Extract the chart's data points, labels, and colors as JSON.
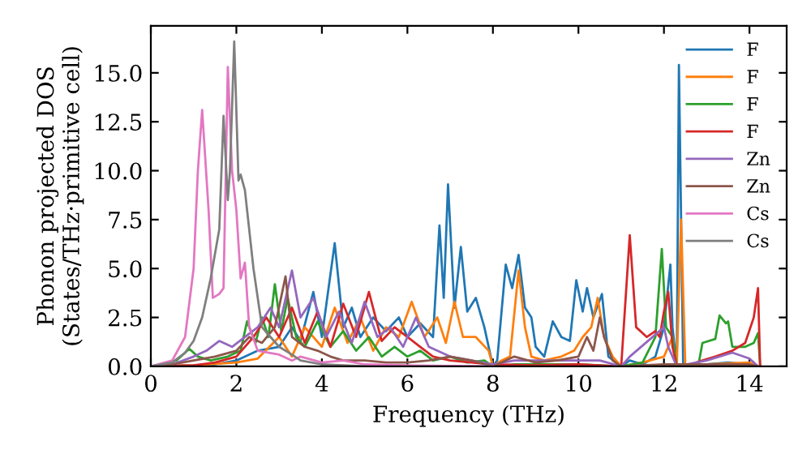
{
  "chart_data": {
    "type": "line",
    "xlabel": "Frequency (THz)",
    "ylabel": "Phonon projected DOS\n(States/THz·primitive cell)",
    "xlim": [
      0,
      14.87
    ],
    "ylim": [
      0,
      17.4
    ],
    "xticks": [
      0,
      2,
      4,
      6,
      8,
      10,
      12,
      14
    ],
    "yticks": [
      {
        "value": 0,
        "label": "0.0"
      },
      {
        "value": 2.5,
        "label": "2.5"
      },
      {
        "value": 5,
        "label": "5.0"
      },
      {
        "value": 7.5,
        "label": "7.5"
      },
      {
        "value": 10,
        "label": "10.0"
      },
      {
        "value": 12.5,
        "label": "12.5"
      },
      {
        "value": 15,
        "label": "15.0"
      }
    ],
    "grid": false,
    "legend": "top right",
    "marker": "none",
    "line_style": "solid",
    "series": [
      {
        "name": "F",
        "color": "#1f77b4",
        "x": [
          0,
          1,
          1.5,
          2,
          2.5,
          3.0,
          3.3,
          3.5,
          3.8,
          4.0,
          4.3,
          4.5,
          4.7,
          4.9,
          5.2,
          5.5,
          5.8,
          6.0,
          6.3,
          6.6,
          6.75,
          6.85,
          6.95,
          7.1,
          7.25,
          7.4,
          7.6,
          7.8,
          8.0,
          8.1,
          8.3,
          8.45,
          8.6,
          8.75,
          8.9,
          9.0,
          9.2,
          9.4,
          9.6,
          9.8,
          9.95,
          10.1,
          10.2,
          10.35,
          10.55,
          10.7,
          11.0,
          11.2,
          11.5,
          11.8,
          12.0,
          12.15,
          12.2,
          12.3,
          12.35,
          12.45,
          12.6,
          13,
          13.5,
          14,
          14.2
        ],
        "values": [
          0,
          0.05,
          0.1,
          0.3,
          0.8,
          1.0,
          2.0,
          1.3,
          3.8,
          1.5,
          6.3,
          2.0,
          3.0,
          1.5,
          2.5,
          1.8,
          2.5,
          1.5,
          2.2,
          1.5,
          7.2,
          3.5,
          9.3,
          3.0,
          6.1,
          2.8,
          3.5,
          2.0,
          0,
          0.3,
          5.2,
          4.0,
          5.7,
          3.0,
          2.5,
          1.0,
          0.5,
          2.3,
          1.5,
          1.3,
          4.4,
          2.8,
          4.0,
          2.5,
          3.7,
          0.5,
          0,
          0.3,
          0.1,
          0.5,
          2.0,
          5.2,
          2.0,
          0,
          15.4,
          0,
          0,
          0.1,
          0.2,
          0.1,
          0
        ]
      },
      {
        "name": "F",
        "color": "#ff7f0e",
        "x": [
          0,
          1,
          2,
          2.5,
          3.0,
          3.3,
          3.6,
          4.0,
          4.3,
          4.6,
          4.9,
          5.2,
          5.5,
          5.8,
          6.1,
          6.4,
          6.7,
          6.9,
          7.1,
          7.3,
          7.6,
          7.9,
          8.0,
          8.2,
          8.4,
          8.6,
          8.75,
          8.9,
          9.2,
          9.6,
          9.9,
          10.1,
          10.3,
          10.45,
          10.6,
          10.8,
          11.0,
          11.5,
          12.0,
          12.2,
          12.3,
          12.4,
          12.5,
          13,
          14,
          14.2
        ],
        "values": [
          0,
          0.05,
          0.2,
          0.4,
          1.5,
          0.5,
          2.0,
          1.0,
          3.0,
          1.2,
          2.5,
          0.8,
          2.0,
          1.5,
          3.3,
          1.5,
          2.5,
          1.2,
          3.3,
          1.5,
          1.5,
          0.8,
          0,
          0.3,
          0.5,
          4.9,
          2.0,
          0.5,
          0.3,
          0.5,
          0.8,
          1.5,
          2.0,
          3.5,
          1.5,
          0.5,
          0,
          0.2,
          0.5,
          1.5,
          0,
          7.5,
          0,
          0.1,
          0.2,
          0
        ]
      },
      {
        "name": "F",
        "color": "#2ca02c",
        "x": [
          0,
          0.6,
          0.9,
          1.1,
          1.4,
          1.8,
          2.1,
          2.25,
          2.45,
          2.6,
          2.75,
          2.9,
          3.05,
          3.2,
          3.4,
          3.6,
          3.9,
          4.2,
          4.5,
          4.8,
          5.1,
          5.4,
          5.7,
          6.0,
          6.3,
          6.6,
          7.0,
          7.4,
          7.8,
          8.0,
          8.5,
          9.0,
          10.0,
          11.0,
          11.5,
          11.8,
          11.95,
          12.05,
          12.2,
          12.3,
          12.8,
          12.9,
          13.2,
          13.3,
          13.45,
          13.5,
          13.6,
          13.9,
          14.1,
          14.2,
          14.25
        ],
        "values": [
          0,
          0.3,
          0.9,
          0.5,
          0.3,
          0.5,
          0.8,
          2.3,
          1.2,
          2.5,
          1.5,
          4.2,
          1.8,
          3.5,
          1.5,
          1.0,
          2.3,
          1.0,
          1.8,
          0.8,
          1.5,
          0.5,
          1.0,
          0.5,
          0.8,
          0.3,
          0.5,
          0.2,
          0.3,
          0,
          0.1,
          0.1,
          0.1,
          0,
          0.2,
          1.5,
          6.0,
          2.0,
          1.5,
          0,
          0,
          1.2,
          1.4,
          2.6,
          2.2,
          2.3,
          1.0,
          1.0,
          1.2,
          1.7,
          0
        ]
      },
      {
        "name": "F",
        "color": "#d62728",
        "x": [
          0,
          1,
          1.5,
          2.0,
          2.4,
          2.7,
          3.0,
          3.3,
          3.6,
          3.9,
          4.2,
          4.5,
          4.8,
          5.1,
          5.4,
          5.7,
          6.0,
          6.3,
          6.6,
          7.0,
          7.5,
          8.0,
          9,
          10,
          11.0,
          11.2,
          11.35,
          11.6,
          11.8,
          11.9,
          12.0,
          12.1,
          12.2,
          12.3,
          12.5,
          12.9,
          13.2,
          13.6,
          13.9,
          14.1,
          14.2,
          14.25
        ],
        "values": [
          0,
          0.05,
          0.2,
          0.5,
          1.5,
          2.5,
          1.5,
          3.0,
          1.2,
          2.8,
          1.0,
          3.2,
          1.5,
          3.8,
          1.3,
          2.0,
          1.5,
          1.0,
          0.5,
          0.3,
          0.2,
          0.1,
          0.05,
          0.1,
          0,
          6.7,
          2.0,
          1.5,
          1.8,
          1.5,
          2.8,
          3.8,
          1.0,
          0,
          0,
          0.3,
          0.5,
          0.8,
          1.2,
          2.5,
          4.0,
          0
        ]
      },
      {
        "name": "Zn",
        "color": "#9467bd",
        "x": [
          0,
          0.5,
          1.0,
          1.3,
          1.6,
          1.9,
          2.2,
          2.5,
          2.8,
          3.0,
          3.3,
          3.5,
          3.8,
          4.1,
          4.4,
          4.7,
          5.0,
          5.3,
          5.6,
          5.9,
          6.2,
          6.5,
          7.0,
          7.5,
          8.0,
          8.5,
          9.5,
          10.5,
          11.0,
          11.2,
          12.0,
          12.1,
          12.3,
          13,
          13.6,
          14,
          14.2
        ],
        "values": [
          0,
          0.1,
          0.5,
          0.8,
          1.3,
          1.0,
          1.5,
          2.0,
          3.0,
          2.0,
          4.9,
          2.5,
          3.5,
          1.5,
          2.8,
          1.2,
          3.3,
          1.5,
          2.0,
          1.0,
          2.5,
          1.0,
          0.5,
          0.3,
          0.1,
          0.3,
          0.3,
          0.3,
          0,
          0.5,
          2.0,
          1.0,
          0,
          0.3,
          0.7,
          0.4,
          0
        ]
      },
      {
        "name": "Zn",
        "color": "#8c564b",
        "x": [
          0,
          0.5,
          1.0,
          1.5,
          2.0,
          2.3,
          2.6,
          2.9,
          3.15,
          3.3,
          3.6,
          3.9,
          4.2,
          4.5,
          5.0,
          5.5,
          6.0,
          6.5,
          7.0,
          7.5,
          8.0,
          8.5,
          9.0,
          9.5,
          10.0,
          10.2,
          10.35,
          10.5,
          10.6,
          10.8,
          11,
          12,
          13,
          14,
          14.2
        ],
        "values": [
          0,
          0.1,
          0.3,
          0.5,
          0.8,
          1.5,
          1.2,
          2.0,
          4.6,
          1.5,
          1.0,
          0.8,
          0.5,
          0.3,
          0.3,
          0.2,
          0.2,
          0.3,
          0.5,
          0.3,
          0,
          0.5,
          0.2,
          0.3,
          0.5,
          1.5,
          0.8,
          2.5,
          1.5,
          0.3,
          0,
          0.1,
          0.1,
          0.1,
          0
        ]
      },
      {
        "name": "Cs",
        "color": "#e377c2",
        "x": [
          0,
          0.5,
          0.8,
          1.0,
          1.1,
          1.2,
          1.35,
          1.45,
          1.6,
          1.7,
          1.8,
          1.9,
          2.0,
          2.1,
          2.2,
          2.3,
          2.5,
          3.0,
          3.3,
          3.5,
          4.0,
          4.5,
          5,
          6,
          8
        ],
        "values": [
          0,
          0.3,
          1.5,
          5,
          10,
          13.1,
          8,
          3.5,
          3.7,
          4,
          15.3,
          10,
          8,
          4.5,
          5.3,
          2,
          0.8,
          0.6,
          0.3,
          0.5,
          0.2,
          0.3,
          0.1,
          0.05,
          0
        ]
      },
      {
        "name": "Cs",
        "color": "#7f7f7f",
        "x": [
          0,
          0.5,
          0.8,
          1.0,
          1.2,
          1.4,
          1.6,
          1.7,
          1.8,
          1.85,
          1.95,
          2.05,
          2.1,
          2.2,
          2.3,
          2.4,
          2.5,
          2.6,
          2.8,
          3.0,
          3.3,
          3.5,
          4,
          5
        ],
        "values": [
          0,
          0.2,
          0.7,
          1.3,
          2.5,
          4.5,
          7,
          12.8,
          8.5,
          10,
          16.6,
          9.5,
          9.8,
          9,
          7,
          5,
          3.5,
          2.0,
          1.5,
          1.0,
          0.6,
          0.3,
          0.1,
          0
        ]
      }
    ]
  }
}
